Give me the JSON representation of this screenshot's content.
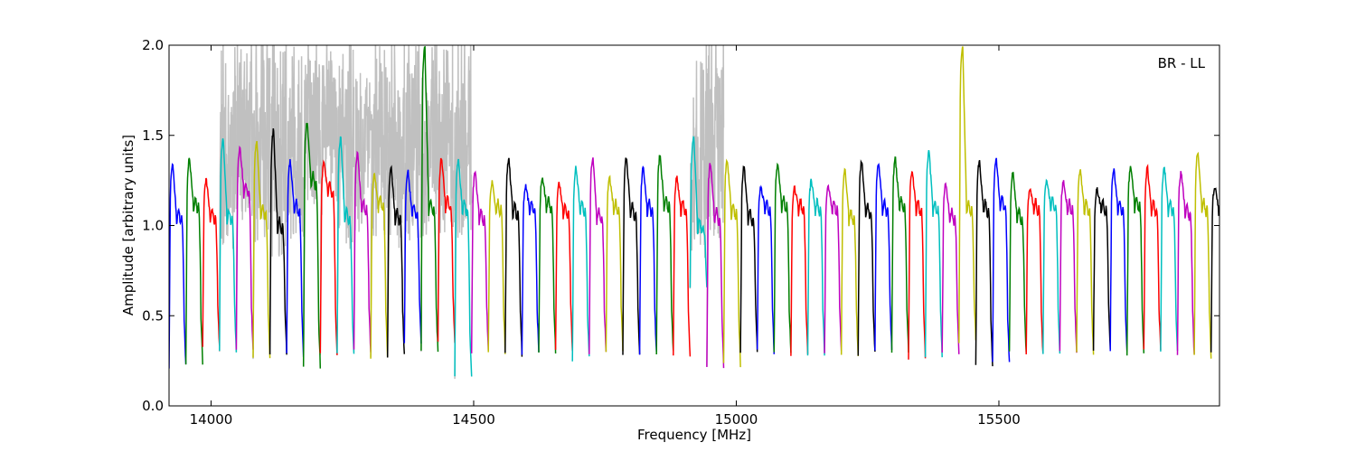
{
  "chart_data": {
    "type": "line",
    "xlabel": "Frequency [MHz]",
    "ylabel": "Amplitude [arbitrary units]",
    "annotation": "BR - LL",
    "xlim": [
      13920,
      15920
    ],
    "ylim": [
      0.0,
      2.0
    ],
    "xticks": [
      14000,
      14500,
      15000,
      15500
    ],
    "yticks": [
      0.0,
      0.5,
      1.0,
      1.5,
      2.0
    ],
    "ytick_labels": [
      "0.0",
      "0.5",
      "1.0",
      "1.5",
      "2.0"
    ],
    "grid": false,
    "legend": "none",
    "channel_width_mhz": 32,
    "first_channel_start_mhz": 13920,
    "colors": [
      "#0000ff",
      "#007f00",
      "#ff0000",
      "#00bfbf",
      "#bf00bf",
      "#bfbf00",
      "#000000"
    ],
    "flagged_color": "#c0c0c0",
    "flagged_region_mhz": [
      [
        14020,
        14510
      ],
      [
        14900,
        14960
      ]
    ],
    "series": [
      {
        "start": 13920,
        "peak": 1.35,
        "mid": 1.05,
        "dip": 0.22,
        "color": "#0000ff"
      },
      {
        "start": 13952,
        "peak": 1.37,
        "mid": 1.12,
        "dip": 0.24,
        "color": "#007f00"
      },
      {
        "start": 13984,
        "peak": 1.26,
        "mid": 1.05,
        "dip": 0.32,
        "color": "#ff0000"
      },
      {
        "start": 14016,
        "peak": 1.49,
        "mid": 1.05,
        "dip": 0.3,
        "color": "#00bfbf"
      },
      {
        "start": 14048,
        "peak": 1.43,
        "mid": 1.2,
        "dip": 0.3,
        "color": "#bf00bf"
      },
      {
        "start": 14080,
        "peak": 1.47,
        "mid": 1.08,
        "dip": 0.26,
        "color": "#bfbf00"
      },
      {
        "start": 14112,
        "peak": 1.53,
        "mid": 1.0,
        "dip": 0.28,
        "color": "#000000"
      },
      {
        "start": 14144,
        "peak": 1.36,
        "mid": 1.1,
        "dip": 0.28,
        "color": "#0000ff"
      },
      {
        "start": 14176,
        "peak": 1.58,
        "mid": 1.25,
        "dip": 0.22,
        "color": "#007f00"
      },
      {
        "start": 14208,
        "peak": 1.35,
        "mid": 1.2,
        "dip": 0.28,
        "color": "#ff0000"
      },
      {
        "start": 14240,
        "peak": 1.49,
        "mid": 1.05,
        "dip": 0.28,
        "color": "#00bfbf"
      },
      {
        "start": 14272,
        "peak": 1.4,
        "mid": 1.1,
        "dip": 0.3,
        "color": "#bf00bf"
      },
      {
        "start": 14304,
        "peak": 1.28,
        "mid": 1.12,
        "dip": 0.27,
        "color": "#bfbf00"
      },
      {
        "start": 14336,
        "peak": 1.33,
        "mid": 1.05,
        "dip": 0.28,
        "color": "#000000"
      },
      {
        "start": 14368,
        "peak": 1.3,
        "mid": 1.08,
        "dip": 0.35,
        "color": "#0000ff"
      },
      {
        "start": 14400,
        "peak": 2.0,
        "mid": 1.1,
        "dip": 0.3,
        "color": "#007f00"
      },
      {
        "start": 14432,
        "peak": 1.38,
        "mid": 1.12,
        "dip": 0.35,
        "color": "#ff0000"
      },
      {
        "start": 14464,
        "peak": 1.36,
        "mid": 1.1,
        "dip": 0.15,
        "color": "#00bfbf"
      },
      {
        "start": 14496,
        "peak": 1.3,
        "mid": 1.05,
        "dip": 0.3,
        "color": "#bf00bf"
      },
      {
        "start": 14528,
        "peak": 1.24,
        "mid": 1.1,
        "dip": 0.3,
        "color": "#bfbf00"
      },
      {
        "start": 14560,
        "peak": 1.37,
        "mid": 1.08,
        "dip": 0.28,
        "color": "#000000"
      },
      {
        "start": 14592,
        "peak": 1.22,
        "mid": 1.1,
        "dip": 0.29,
        "color": "#0000ff"
      },
      {
        "start": 14624,
        "peak": 1.27,
        "mid": 1.12,
        "dip": 0.3,
        "color": "#007f00"
      },
      {
        "start": 14656,
        "peak": 1.24,
        "mid": 1.08,
        "dip": 0.31,
        "color": "#ff0000"
      },
      {
        "start": 14688,
        "peak": 1.32,
        "mid": 1.1,
        "dip": 0.26,
        "color": "#00bfbf"
      },
      {
        "start": 14720,
        "peak": 1.38,
        "mid": 1.05,
        "dip": 0.29,
        "color": "#bf00bf"
      },
      {
        "start": 14752,
        "peak": 1.27,
        "mid": 1.1,
        "dip": 0.31,
        "color": "#bfbf00"
      },
      {
        "start": 14784,
        "peak": 1.38,
        "mid": 1.08,
        "dip": 0.29,
        "color": "#000000"
      },
      {
        "start": 14816,
        "peak": 1.32,
        "mid": 1.1,
        "dip": 0.29,
        "color": "#0000ff"
      },
      {
        "start": 14848,
        "peak": 1.39,
        "mid": 1.12,
        "dip": 0.29,
        "color": "#007f00"
      },
      {
        "start": 14880,
        "peak": 1.27,
        "mid": 1.1,
        "dip": 0.28,
        "color": "#ff0000"
      },
      {
        "start": 14912,
        "peak": 1.5,
        "mid": 1.0,
        "dip": 0.65,
        "color": "#00bfbf"
      },
      {
        "start": 14944,
        "peak": 1.35,
        "mid": 1.05,
        "dip": 0.22,
        "color": "#bf00bf"
      },
      {
        "start": 14976,
        "peak": 1.37,
        "mid": 1.08,
        "dip": 0.23,
        "color": "#bfbf00"
      },
      {
        "start": 15008,
        "peak": 1.33,
        "mid": 1.05,
        "dip": 0.3,
        "color": "#000000"
      },
      {
        "start": 15040,
        "peak": 1.22,
        "mid": 1.1,
        "dip": 0.3,
        "color": "#0000ff"
      },
      {
        "start": 15072,
        "peak": 1.34,
        "mid": 1.12,
        "dip": 0.29,
        "color": "#007f00"
      },
      {
        "start": 15104,
        "peak": 1.21,
        "mid": 1.1,
        "dip": 0.29,
        "color": "#ff0000"
      },
      {
        "start": 15136,
        "peak": 1.25,
        "mid": 1.1,
        "dip": 0.29,
        "color": "#00bfbf"
      },
      {
        "start": 15168,
        "peak": 1.22,
        "mid": 1.1,
        "dip": 0.29,
        "color": "#bf00bf"
      },
      {
        "start": 15200,
        "peak": 1.31,
        "mid": 1.05,
        "dip": 0.27,
        "color": "#bfbf00"
      },
      {
        "start": 15232,
        "peak": 1.36,
        "mid": 1.08,
        "dip": 0.29,
        "color": "#000000"
      },
      {
        "start": 15264,
        "peak": 1.35,
        "mid": 1.1,
        "dip": 0.31,
        "color": "#0000ff"
      },
      {
        "start": 15296,
        "peak": 1.37,
        "mid": 1.12,
        "dip": 0.29,
        "color": "#007f00"
      },
      {
        "start": 15328,
        "peak": 1.31,
        "mid": 1.1,
        "dip": 0.27,
        "color": "#ff0000"
      },
      {
        "start": 15360,
        "peak": 1.41,
        "mid": 1.1,
        "dip": 0.28,
        "color": "#00bfbf"
      },
      {
        "start": 15392,
        "peak": 1.23,
        "mid": 1.05,
        "dip": 0.29,
        "color": "#bf00bf"
      },
      {
        "start": 15424,
        "peak": 2.0,
        "mid": 1.1,
        "dip": 0.36,
        "color": "#bfbf00"
      },
      {
        "start": 15456,
        "peak": 1.36,
        "mid": 1.1,
        "dip": 0.22,
        "color": "#000000"
      },
      {
        "start": 15488,
        "peak": 1.37,
        "mid": 1.12,
        "dip": 0.23,
        "color": "#0000ff"
      },
      {
        "start": 15520,
        "peak": 1.3,
        "mid": 1.05,
        "dip": 0.29,
        "color": "#007f00"
      },
      {
        "start": 15552,
        "peak": 1.2,
        "mid": 1.1,
        "dip": 0.28,
        "color": "#ff0000"
      },
      {
        "start": 15584,
        "peak": 1.25,
        "mid": 1.12,
        "dip": 0.29,
        "color": "#00bfbf"
      },
      {
        "start": 15616,
        "peak": 1.25,
        "mid": 1.1,
        "dip": 0.29,
        "color": "#bf00bf"
      },
      {
        "start": 15648,
        "peak": 1.31,
        "mid": 1.1,
        "dip": 0.29,
        "color": "#bfbf00"
      },
      {
        "start": 15680,
        "peak": 1.2,
        "mid": 1.1,
        "dip": 0.31,
        "color": "#000000"
      },
      {
        "start": 15712,
        "peak": 1.31,
        "mid": 1.1,
        "dip": 0.29,
        "color": "#0000ff"
      },
      {
        "start": 15744,
        "peak": 1.33,
        "mid": 1.12,
        "dip": 0.29,
        "color": "#007f00"
      },
      {
        "start": 15776,
        "peak": 1.32,
        "mid": 1.1,
        "dip": 0.3,
        "color": "#ff0000"
      },
      {
        "start": 15808,
        "peak": 1.33,
        "mid": 1.1,
        "dip": 0.3,
        "color": "#00bfbf"
      },
      {
        "start": 15840,
        "peak": 1.3,
        "mid": 1.08,
        "dip": 0.28,
        "color": "#bf00bf"
      },
      {
        "start": 15872,
        "peak": 1.41,
        "mid": 1.1,
        "dip": 0.27,
        "color": "#bfbf00"
      },
      {
        "start": 15904,
        "peak": 1.22,
        "mid": 1.1,
        "dip": 0.3,
        "color": "#000000"
      }
    ]
  }
}
